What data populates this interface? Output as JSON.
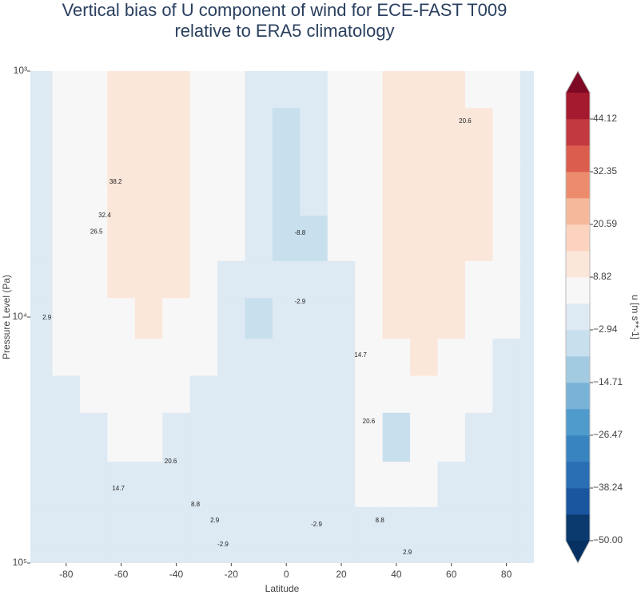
{
  "chart_data": {
    "type": "contourf",
    "title": [
      "Vertical bias of U component of wind for ECE-FAST T009",
      "relative to ERA5 climatology"
    ],
    "xlabel": "Latitude",
    "ylabel": "Pressure Level (Pa)",
    "colorbar_label": "u [m s**-1]",
    "x": [
      -90,
      -80,
      -70,
      -60,
      -50,
      -40,
      -30,
      -20,
      -10,
      0,
      10,
      20,
      30,
      40,
      50,
      60,
      70,
      80,
      90
    ],
    "y": [
      1000,
      2000,
      3000,
      5000,
      7000,
      10000,
      15000,
      20000,
      30000,
      50000,
      70000,
      100000
    ],
    "z": [
      [
        1,
        4,
        7,
        10,
        10,
        10,
        6,
        4,
        1,
        -1,
        0,
        3,
        5,
        10,
        11,
        11,
        8,
        4,
        1
      ],
      [
        1,
        4,
        7,
        10,
        11,
        10,
        7,
        4,
        1,
        -3,
        -1,
        4,
        6,
        10,
        12,
        12,
        9,
        5,
        1
      ],
      [
        1,
        4,
        7,
        10,
        11,
        10,
        7,
        4,
        0,
        -4,
        -2,
        4,
        6,
        10,
        12,
        12,
        9,
        5,
        1
      ],
      [
        1,
        4,
        8,
        10,
        11,
        10,
        6,
        3,
        0,
        -4,
        -3,
        3,
        6,
        10,
        12,
        12,
        9,
        5,
        1
      ],
      [
        1,
        4,
        7,
        9,
        10,
        9,
        5,
        2,
        0,
        -2,
        -1,
        2,
        6,
        10,
        12,
        12,
        8,
        4,
        1
      ],
      [
        1,
        3,
        6,
        8,
        9,
        7,
        4,
        1,
        -3,
        0,
        0,
        1,
        5,
        9,
        11,
        10,
        7,
        3,
        1
      ],
      [
        0,
        3,
        5,
        7,
        7,
        5,
        3,
        1,
        0,
        0,
        0,
        1,
        4,
        7,
        9,
        8,
        5,
        2,
        0
      ],
      [
        0,
        2,
        4,
        5,
        5,
        4,
        2,
        0,
        0,
        0,
        0,
        1,
        4,
        6,
        7,
        6,
        4,
        2,
        0
      ],
      [
        0,
        1,
        2,
        3,
        3,
        2,
        1,
        0,
        0,
        0,
        0,
        1,
        4,
        -3,
        5,
        4,
        2,
        1,
        0
      ],
      [
        0,
        0,
        1,
        1,
        1,
        1,
        0,
        0,
        0,
        0,
        0,
        1,
        3,
        3,
        3,
        2,
        1,
        0,
        0
      ],
      [
        0,
        0,
        0,
        0,
        0,
        0,
        0,
        0,
        0,
        0,
        0,
        0,
        1,
        1,
        1,
        1,
        0,
        0,
        0
      ],
      [
        0,
        0,
        0,
        0,
        0,
        0,
        0,
        0,
        0,
        0,
        0,
        0,
        0,
        0,
        0,
        0,
        0,
        0,
        0
      ]
    ],
    "xlim": [
      -93,
      90
    ],
    "xticks": [
      -80,
      -60,
      -40,
      -20,
      0,
      20,
      40,
      60,
      80
    ],
    "ylim": [
      1000,
      100000
    ],
    "ylog": true,
    "yreversed": true,
    "yticks": [
      {
        "value": 1000,
        "label": "10³"
      },
      {
        "value": 10000,
        "label": "10⁴"
      },
      {
        "value": 100000,
        "label": "10⁵"
      }
    ],
    "levels": [
      -50,
      -44.12,
      -38.24,
      -32.35,
      -26.47,
      -20.59,
      -14.71,
      -8.82,
      -2.94,
      2.94,
      8.82,
      14.71,
      20.59,
      26.47,
      32.35,
      38.24,
      44.12,
      50
    ],
    "colors": [
      "#0b3a6e",
      "#1a56a0",
      "#2a6eb3",
      "#3884c0",
      "#4f9bcb",
      "#78b3d7",
      "#a2cbe2",
      "#c8dfee",
      "#dde9f3",
      "#f7f7f7",
      "#fbe6da",
      "#fbd3bf",
      "#f6b89b",
      "#ec8c6d",
      "#da5d4d",
      "#c23a3f",
      "#a51a2f"
    ],
    "under_color": "#053061",
    "over_color": "#7d0925",
    "colorbar_ticks": [
      {
        "value": -50,
        "label": "−50.00"
      },
      {
        "value": -38.24,
        "label": "−38.24"
      },
      {
        "value": -26.47,
        "label": "−26.47"
      },
      {
        "value": -14.71,
        "label": "−14.71"
      },
      {
        "value": -2.94,
        "label": "−2.94"
      },
      8.82,
      20.59,
      32.35,
      44.12
    ],
    "annotations": [
      {
        "text": "38.2",
        "x": -62,
        "y": 2820
      },
      {
        "text": "32.4",
        "x": -66,
        "y": 3870
      },
      {
        "text": "26.5",
        "x": -69,
        "y": 4500
      },
      {
        "text": "2.9",
        "x": -87,
        "y": 10070
      },
      {
        "text": "-8.8",
        "x": 5,
        "y": 4560
      },
      {
        "text": "-2.9",
        "x": 5,
        "y": 8670
      },
      {
        "text": "20.6",
        "x": 65,
        "y": 1600
      },
      {
        "text": "14.7",
        "x": 27,
        "y": 14300
      },
      {
        "text": "20.6",
        "x": 30,
        "y": 26600
      },
      {
        "text": "20.6",
        "x": -42,
        "y": 38700
      },
      {
        "text": "14.7",
        "x": -61,
        "y": 49900
      },
      {
        "text": "8.8",
        "x": -33,
        "y": 57900
      },
      {
        "text": "2.9",
        "x": -26,
        "y": 67300
      },
      {
        "text": "-2.9",
        "x": -23,
        "y": 84200
      },
      {
        "text": "-2.9",
        "x": 11,
        "y": 69800
      },
      {
        "text": "8.8",
        "x": 34,
        "y": 67300
      },
      {
        "text": "2.9",
        "x": 44,
        "y": 90800
      }
    ]
  }
}
